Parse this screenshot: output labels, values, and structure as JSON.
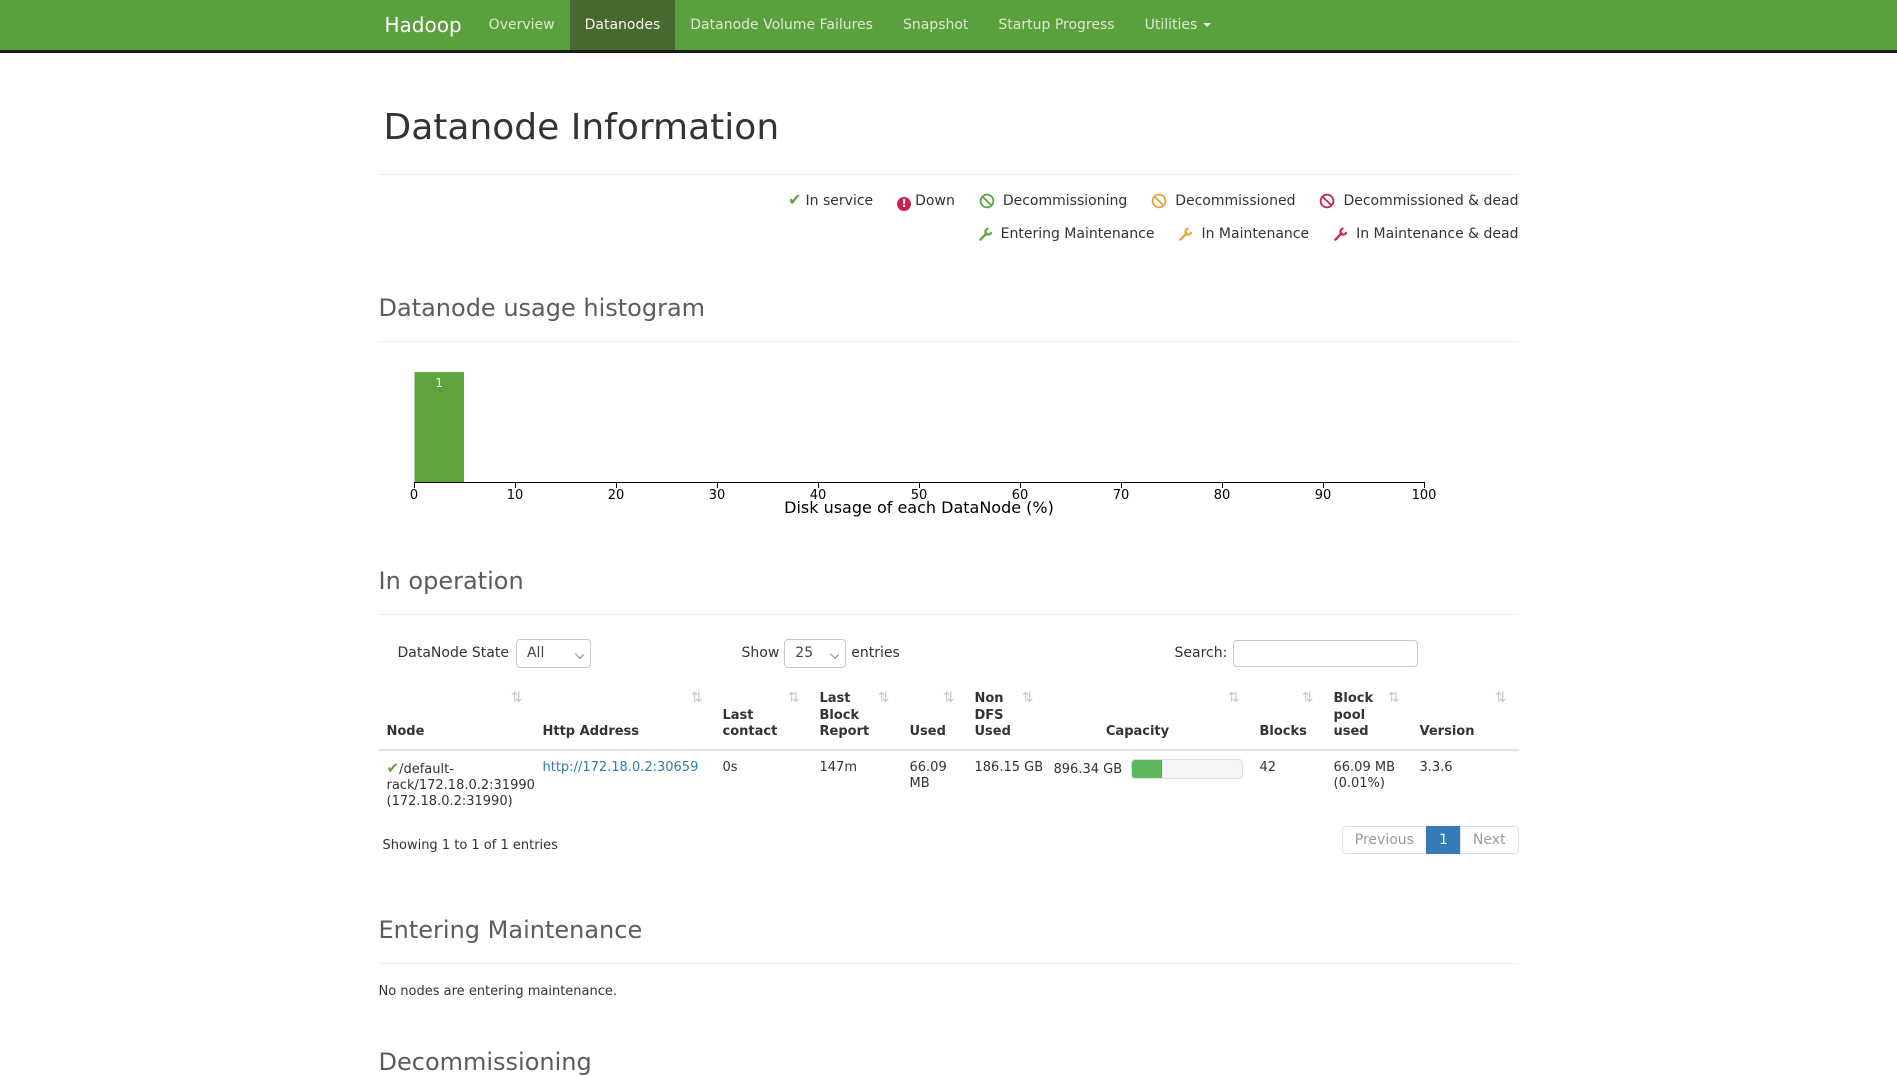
{
  "navbar": {
    "brand": "Hadoop",
    "items": [
      {
        "label": "Overview",
        "active": false
      },
      {
        "label": "Datanodes",
        "active": true
      },
      {
        "label": "Datanode Volume Failures",
        "active": false
      },
      {
        "label": "Snapshot",
        "active": false
      },
      {
        "label": "Startup Progress",
        "active": false
      },
      {
        "label": "Utilities",
        "active": false,
        "dropdown": true
      }
    ]
  },
  "page": {
    "title": "Datanode Information"
  },
  "legend": {
    "row1": [
      {
        "label": "In service",
        "icon": "check",
        "color": "#5fa341"
      },
      {
        "label": "Down",
        "icon": "exclamation-circle",
        "color": "#c5254e"
      },
      {
        "label": "Decommissioning",
        "icon": "ban-circle",
        "color": "#5fa341"
      },
      {
        "label": "Decommissioned",
        "icon": "ban-circle",
        "color": "#eca33c"
      },
      {
        "label": "Decommissioned & dead",
        "icon": "ban-circle",
        "color": "#c5254e"
      }
    ],
    "row2": [
      {
        "label": "Entering Maintenance",
        "icon": "wrench",
        "color": "#5fa341"
      },
      {
        "label": "In Maintenance",
        "icon": "wrench",
        "color": "#eca33c"
      },
      {
        "label": "In Maintenance & dead",
        "icon": "wrench",
        "color": "#c5254e"
      }
    ]
  },
  "sections": {
    "histogram_title": "Datanode usage histogram",
    "in_operation_title": "In operation",
    "entering_maintenance_title": "Entering Maintenance",
    "entering_maintenance_empty": "No nodes are entering maintenance.",
    "decommissioning_title": "Decommissioning"
  },
  "chart_data": {
    "type": "bar",
    "title": "Datanode usage histogram",
    "xlabel": "Disk usage of each DataNode (%)",
    "xlim": [
      0,
      100
    ],
    "xticks": [
      0,
      10,
      20,
      30,
      40,
      50,
      60,
      70,
      80,
      90,
      100
    ],
    "bins": [
      {
        "x0": 0,
        "x1": 5,
        "count": 1
      }
    ],
    "bar_color": "#5fa33c",
    "bar_label_color": "#ffffff"
  },
  "table": {
    "filter_label": "DataNode State",
    "filter_value": "All",
    "show_label": "Show",
    "show_value": "25",
    "entries_label": "entries",
    "search_label": "Search:",
    "search_value": "",
    "columns": [
      "Node",
      "Http Address",
      "Last contact",
      "Last Block Report",
      "Used",
      "Non DFS Used",
      "Capacity",
      "Blocks",
      "Block pool used",
      "Version"
    ],
    "row": {
      "state_icon": "check",
      "node": "/default-rack/172.18.0.2:31990 (172.18.0.2:31990)",
      "http_address": "http://172.18.0.2:30659",
      "last_contact": "0s",
      "last_block_report": "147m",
      "used": "66.09 MB",
      "non_dfs_used": "186.15 GB",
      "capacity": "896.34 GB",
      "capacity_used_pct": 27,
      "blocks": "42",
      "block_pool_used": "66.09 MB (0.01%)",
      "version": "3.3.6"
    },
    "info": "Showing 1 to 1 of 1 entries",
    "pagination": {
      "previous": "Previous",
      "page": "1",
      "next": "Next"
    }
  },
  "colors": {
    "navbar_bg": "#5aa03c",
    "navbar_active_bg": "#47682f",
    "link": "#337ab7",
    "pagination_active_bg": "#337ab7",
    "capacity_fill": "#5cb85c",
    "status_green": "#5fa341",
    "status_orange": "#eca33c",
    "status_red": "#c5254e"
  }
}
